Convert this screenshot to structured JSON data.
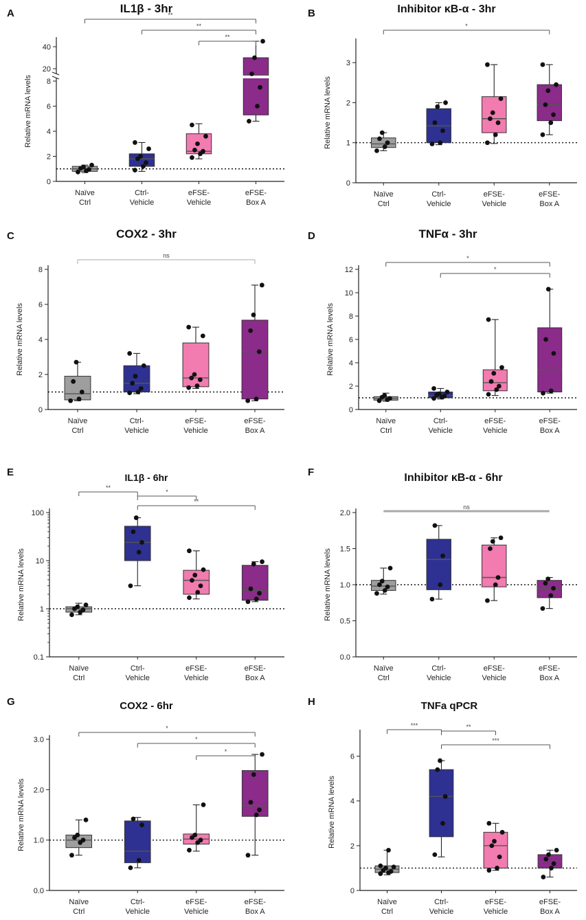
{
  "chart_data": [
    {
      "letter": "A",
      "type": "box",
      "title": "IL1β - 3hr",
      "ylabel": "Relative mRNA levels",
      "scale": "broken",
      "yticks": [
        0,
        2,
        4,
        6,
        8,
        20,
        40
      ],
      "categories": [
        "Naïve Ctrl",
        "Ctrl-Vehicle",
        "eFSE-Vehicle",
        "eFSE-Box A"
      ],
      "colors": [
        "#9e9e9e",
        "#2e3192",
        "#f27bb0",
        "#8b2b8a"
      ],
      "baseline": 1,
      "boxes": [
        {
          "min": 0.7,
          "q1": 0.8,
          "median": 1.0,
          "q3": 1.2,
          "max": 1.3,
          "points": [
            0.75,
            0.85,
            0.95,
            1.05,
            1.15,
            1.3
          ]
        },
        {
          "min": 0.8,
          "q1": 1.2,
          "median": 1.8,
          "q3": 2.2,
          "max": 3.1,
          "points": [
            0.9,
            1.2,
            1.5,
            1.8,
            2.0,
            2.6,
            3.1
          ]
        },
        {
          "min": 1.8,
          "q1": 2.2,
          "median": 2.4,
          "q3": 3.8,
          "max": 4.6,
          "points": [
            1.9,
            2.2,
            2.4,
            2.5,
            3.0,
            3.6,
            4.5
          ]
        },
        {
          "min": 4.8,
          "q1": 5.3,
          "median": 15,
          "q3": 30,
          "max": 45,
          "points": [
            4.8,
            6.0,
            7.5,
            15,
            30,
            45
          ]
        }
      ],
      "sig": [
        {
          "from": 0,
          "to": 3,
          "label": "**"
        },
        {
          "from": 1,
          "to": 3,
          "label": "**"
        },
        {
          "from": 2,
          "to": 3,
          "label": "**"
        }
      ]
    },
    {
      "letter": "B",
      "type": "box",
      "title": "Inhibitor κB-α - 3hr",
      "ylabel": "Relative mRNA levels",
      "scale": "linear",
      "ylim": [
        0,
        3.5
      ],
      "yticks": [
        0,
        1,
        2,
        3
      ],
      "categories": [
        "Naïve Ctrl",
        "Ctrl-Vehicle",
        "eFSE-Vehicle",
        "eFSE-Box A"
      ],
      "colors": [
        "#9e9e9e",
        "#2e3192",
        "#f27bb0",
        "#8b2b8a"
      ],
      "baseline": 1,
      "boxes": [
        {
          "min": 0.8,
          "q1": 0.88,
          "median": 0.97,
          "q3": 1.12,
          "max": 1.25,
          "points": [
            0.8,
            0.9,
            1.0,
            1.1,
            1.25
          ]
        },
        {
          "min": 0.95,
          "q1": 1.0,
          "median": 1.42,
          "q3": 1.85,
          "max": 2.0,
          "points": [
            0.97,
            1.0,
            1.3,
            1.5,
            1.9,
            2.0
          ]
        },
        {
          "min": 0.98,
          "q1": 1.25,
          "median": 1.6,
          "q3": 2.15,
          "max": 2.95,
          "points": [
            1.0,
            1.2,
            1.5,
            1.6,
            1.75,
            2.1,
            2.95
          ]
        },
        {
          "min": 1.2,
          "q1": 1.55,
          "median": 1.95,
          "q3": 2.45,
          "max": 2.95,
          "points": [
            1.2,
            1.5,
            1.7,
            1.95,
            2.3,
            2.45,
            2.95
          ]
        }
      ],
      "sig": [
        {
          "from": 0,
          "to": 3,
          "label": "*"
        }
      ]
    },
    {
      "letter": "C",
      "type": "box",
      "title": "COX2 - 3hr",
      "ylabel": "Relative mRNA levels",
      "scale": "linear",
      "ylim": [
        0,
        8
      ],
      "yticks": [
        0,
        2,
        4,
        6,
        8
      ],
      "categories": [
        "Naïve Ctrl",
        "Ctrl-Vehicle",
        "eFSE-Vehicle",
        "eFSE-Box A"
      ],
      "colors": [
        "#9e9e9e",
        "#2e3192",
        "#f27bb0",
        "#8b2b8a"
      ],
      "baseline": 1,
      "boxes": [
        {
          "min": 0.5,
          "q1": 0.55,
          "median": 0.9,
          "q3": 1.9,
          "max": 2.7,
          "points": [
            0.5,
            0.6,
            1.0,
            1.6,
            2.7
          ]
        },
        {
          "min": 0.9,
          "q1": 1.0,
          "median": 1.5,
          "q3": 2.5,
          "max": 3.2,
          "points": [
            0.95,
            1.0,
            1.2,
            1.5,
            1.9,
            2.5,
            3.2
          ]
        },
        {
          "min": 1.2,
          "q1": 1.3,
          "median": 1.8,
          "q3": 3.8,
          "max": 4.7,
          "points": [
            1.25,
            1.35,
            1.7,
            1.8,
            2.0,
            4.2,
            4.7
          ]
        },
        {
          "min": 0.5,
          "q1": 0.6,
          "median": 3.3,
          "q3": 5.1,
          "max": 7.1,
          "points": [
            0.5,
            0.6,
            3.3,
            4.5,
            5.4,
            7.1
          ]
        }
      ],
      "sig": [
        {
          "from": 0,
          "to": 3,
          "label": "ns"
        }
      ]
    },
    {
      "letter": "D",
      "type": "box",
      "title": "TNFα - 3hr",
      "ylabel": "Relative mRNA levels",
      "scale": "linear",
      "ylim": [
        0,
        12
      ],
      "yticks": [
        0,
        2,
        4,
        6,
        8,
        10,
        12
      ],
      "categories": [
        "Naïve Ctrl",
        "Ctrl-Vehicle",
        "eFSE-Vehicle",
        "eFSE-Box A"
      ],
      "colors": [
        "#9e9e9e",
        "#2e3192",
        "#f27bb0",
        "#8b2b8a"
      ],
      "baseline": 1,
      "boxes": [
        {
          "min": 0.7,
          "q1": 0.8,
          "median": 0.95,
          "q3": 1.1,
          "max": 1.4,
          "points": [
            0.75,
            0.85,
            0.95,
            1.05,
            1.2
          ]
        },
        {
          "min": 0.9,
          "q1": 1.0,
          "median": 1.2,
          "q3": 1.5,
          "max": 1.8,
          "points": [
            0.95,
            1.05,
            1.15,
            1.25,
            1.35,
            1.5,
            1.8
          ]
        },
        {
          "min": 1.2,
          "q1": 1.6,
          "median": 2.3,
          "q3": 3.4,
          "max": 7.7,
          "points": [
            1.3,
            1.7,
            2.0,
            2.4,
            3.1,
            3.6,
            7.7
          ]
        },
        {
          "min": 1.4,
          "q1": 1.5,
          "median": 3.4,
          "q3": 7.0,
          "max": 10.3,
          "points": [
            1.4,
            1.6,
            4.8,
            6.0,
            10.3
          ]
        }
      ],
      "sig": [
        {
          "from": 0,
          "to": 3,
          "label": "*"
        },
        {
          "from": 1,
          "to": 3,
          "label": "*"
        }
      ]
    },
    {
      "letter": "E",
      "type": "box",
      "title": "IL1β - 6hr",
      "ylabel": "Relative mRNA levels",
      "scale": "log",
      "ylim": [
        0.1,
        100
      ],
      "yticks": [
        0.1,
        1,
        10,
        100
      ],
      "ytick_labels": [
        "0.1",
        "1",
        "10",
        "100"
      ],
      "categories": [
        "Naïve Ctrl",
        "Ctrl-Vehicle",
        "eFSE-Vehicle",
        "eFSE-Box A"
      ],
      "colors": [
        "#9e9e9e",
        "#2e3192",
        "#f27bb0",
        "#8b2b8a"
      ],
      "baseline": 1,
      "boxes": [
        {
          "min": 0.75,
          "q1": 0.85,
          "median": 1.0,
          "q3": 1.1,
          "max": 1.3,
          "points": [
            0.75,
            0.85,
            0.95,
            1.0,
            1.1,
            1.2
          ]
        },
        {
          "min": 3.0,
          "q1": 10,
          "median": 24,
          "q3": 52,
          "max": 78,
          "points": [
            3.0,
            15,
            24,
            40,
            78
          ]
        },
        {
          "min": 1.6,
          "q1": 2.0,
          "median": 3.9,
          "q3": 6.3,
          "max": 16,
          "points": [
            1.7,
            2.2,
            3.0,
            3.9,
            5.0,
            6.5,
            16
          ]
        },
        {
          "min": 1.4,
          "q1": 1.5,
          "median": 2.4,
          "q3": 8.0,
          "max": 9.5,
          "points": [
            1.4,
            1.6,
            2.1,
            2.6,
            8.5,
            9.5
          ]
        }
      ],
      "sig": [
        {
          "from": 0,
          "to": 1,
          "label": "**"
        },
        {
          "from": 1,
          "to": 2,
          "label": "*"
        },
        {
          "from": 1,
          "to": 3,
          "label": "**"
        }
      ]
    },
    {
      "letter": "F",
      "type": "box",
      "title": "Inhibitor κB-α - 6hr",
      "ylabel": "Relative mRNA levels",
      "scale": "linear",
      "ylim": [
        0,
        2.0
      ],
      "yticks": [
        0,
        0.5,
        1.0,
        1.5,
        2.0
      ],
      "ytick_labels": [
        "0.0",
        "0.5",
        "1.0",
        "1.5",
        "2.0"
      ],
      "categories": [
        "Naïve Ctrl",
        "Ctrl-Vehicle",
        "eFSE-Vehicle",
        "eFSE-Box A"
      ],
      "colors": [
        "#9e9e9e",
        "#2e3192",
        "#f27bb0",
        "#8b2b8a"
      ],
      "baseline": 1,
      "boxes": [
        {
          "min": 0.87,
          "q1": 0.92,
          "median": 0.98,
          "q3": 1.06,
          "max": 1.23,
          "points": [
            0.88,
            0.92,
            0.97,
            1.0,
            1.05,
            1.23
          ]
        },
        {
          "min": 0.8,
          "q1": 0.93,
          "median": 1.35,
          "q3": 1.63,
          "max": 1.82,
          "points": [
            0.8,
            1.0,
            1.4,
            1.82
          ]
        },
        {
          "min": 0.78,
          "q1": 0.97,
          "median": 1.1,
          "q3": 1.55,
          "max": 1.65,
          "points": [
            0.78,
            1.0,
            1.1,
            1.5,
            1.6,
            1.65
          ]
        },
        {
          "min": 0.67,
          "q1": 0.82,
          "median": 0.95,
          "q3": 1.06,
          "max": 1.1,
          "points": [
            0.67,
            0.85,
            0.95,
            1.02,
            1.08
          ]
        }
      ],
      "sig": [
        {
          "from": 0,
          "to": 3,
          "label": "ns"
        }
      ]
    },
    {
      "letter": "G",
      "type": "box",
      "title": "COX2 - 6hr",
      "ylabel": "Relative mRNA levels",
      "scale": "linear",
      "ylim": [
        0,
        3.0
      ],
      "yticks": [
        0,
        1.0,
        2.0,
        3.0
      ],
      "ytick_labels": [
        "0.0",
        "1.0",
        "2.0",
        "3.0"
      ],
      "categories": [
        "Naïve Ctrl",
        "Ctrl-Vehicle",
        "eFSE-Vehicle",
        "eFSE-Box A"
      ],
      "colors": [
        "#9e9e9e",
        "#2e3192",
        "#f27bb0",
        "#8b2b8a"
      ],
      "baseline": 1,
      "boxes": [
        {
          "min": 0.7,
          "q1": 0.85,
          "median": 1.0,
          "q3": 1.1,
          "max": 1.4,
          "points": [
            0.7,
            0.95,
            1.0,
            1.05,
            1.1,
            1.4
          ]
        },
        {
          "min": 0.45,
          "q1": 0.55,
          "median": 0.78,
          "q3": 1.38,
          "max": 1.45,
          "points": [
            0.45,
            0.6,
            1.3,
            1.42
          ]
        },
        {
          "min": 0.78,
          "q1": 0.92,
          "median": 1.02,
          "q3": 1.12,
          "max": 1.7,
          "points": [
            0.8,
            0.95,
            1.0,
            1.05,
            1.1,
            1.7
          ]
        },
        {
          "min": 0.7,
          "q1": 1.47,
          "median": 1.68,
          "q3": 2.38,
          "max": 2.7,
          "points": [
            0.7,
            1.5,
            1.6,
            1.75,
            2.3,
            2.7
          ]
        }
      ],
      "sig": [
        {
          "from": 0,
          "to": 3,
          "label": "*"
        },
        {
          "from": 1,
          "to": 3,
          "label": "*"
        },
        {
          "from": 2,
          "to": 3,
          "label": "*"
        }
      ]
    },
    {
      "letter": "H",
      "type": "box",
      "title": "TNFa qPCR",
      "ylabel": "Relative mRNA levels",
      "scale": "linear",
      "ylim": [
        0,
        7
      ],
      "yticks": [
        0,
        2,
        4,
        6
      ],
      "categories": [
        "Naïve Ctrl",
        "Ctrl-Vehicle",
        "eFSE-Vehicle",
        "eFSE-Box A"
      ],
      "colors": [
        "#9e9e9e",
        "#2e3192",
        "#f27bb0",
        "#8b2b8a"
      ],
      "baseline": 1,
      "boxes": [
        {
          "min": 0.7,
          "q1": 0.8,
          "median": 0.95,
          "q3": 1.1,
          "max": 1.8,
          "points": [
            0.75,
            0.8,
            0.85,
            0.9,
            1.0,
            1.05,
            1.1,
            1.8
          ]
        },
        {
          "min": 1.5,
          "q1": 2.4,
          "median": 4.2,
          "q3": 5.4,
          "max": 5.8,
          "points": [
            1.6,
            3.0,
            4.2,
            5.4,
            5.8
          ]
        },
        {
          "min": 0.9,
          "q1": 1.0,
          "median": 2.0,
          "q3": 2.6,
          "max": 3.0,
          "points": [
            0.9,
            1.0,
            1.5,
            2.0,
            2.2,
            2.6,
            3.0
          ]
        },
        {
          "min": 0.6,
          "q1": 1.0,
          "median": 1.3,
          "q3": 1.6,
          "max": 1.8,
          "points": [
            0.6,
            1.0,
            1.2,
            1.4,
            1.6,
            1.8
          ]
        }
      ],
      "sig": [
        {
          "from": 0,
          "to": 1,
          "label": "***"
        },
        {
          "from": 1,
          "to": 2,
          "label": "**"
        },
        {
          "from": 1,
          "to": 3,
          "label": "***"
        }
      ]
    }
  ]
}
